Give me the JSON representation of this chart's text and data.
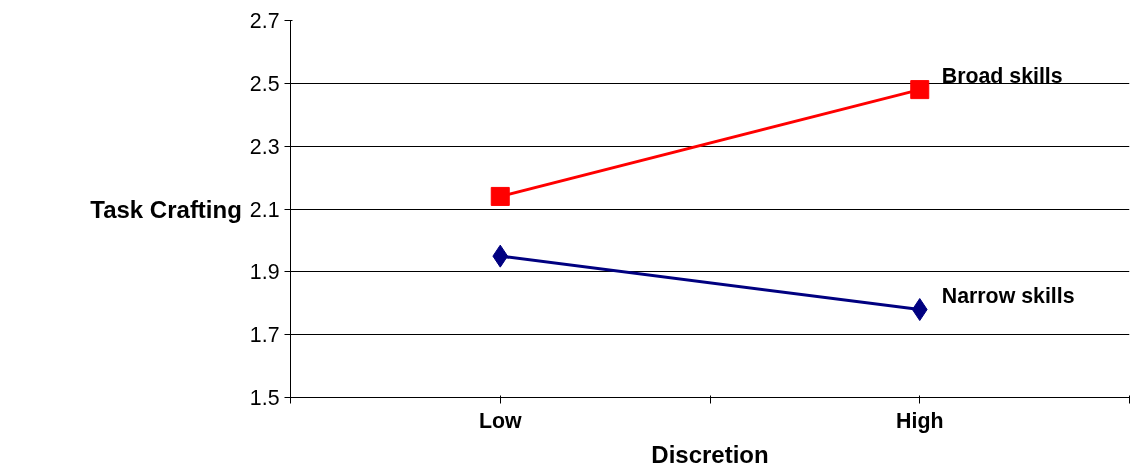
{
  "chart_data": {
    "type": "line",
    "xlabel": "Discretion",
    "ylabel": "Task Crafting",
    "categories": [
      "Low",
      "High"
    ],
    "series": [
      {
        "name": "Broad skills",
        "color": "#ff0000",
        "marker": "square",
        "values": [
          2.14,
          2.48
        ]
      },
      {
        "name": "Narrow skills",
        "color": "#000080",
        "marker": "diamond",
        "values": [
          1.95,
          1.78
        ]
      }
    ],
    "ylim": [
      1.5,
      2.7
    ],
    "yticks": [
      1.5,
      1.7,
      1.9,
      2.1,
      2.3,
      2.5,
      2.7
    ],
    "grid": "y",
    "legend": false,
    "line_style": "solid"
  }
}
